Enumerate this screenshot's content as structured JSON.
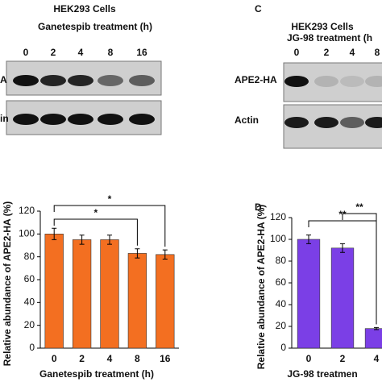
{
  "blots": {
    "left": {
      "title": "HEK293 Cells",
      "treatment": "Ganetespib treatment (h)",
      "lanes": [
        "0",
        "2",
        "4",
        "8",
        "16"
      ],
      "rows": [
        "A",
        "in"
      ]
    },
    "right": {
      "panel": "C",
      "title": "HEK293 Cells",
      "treatment": "JG-98 treatment (h",
      "lanes": [
        "0",
        "2",
        "4",
        "8"
      ],
      "rows": [
        "APE2-HA",
        "Actin"
      ]
    }
  },
  "chart_data": [
    {
      "type": "bar",
      "ylabel": "Relative abundance of APE2-HA (%)",
      "xlabel": "Ganetespib treatment (h)",
      "categories": [
        "0",
        "2",
        "4",
        "8",
        "16"
      ],
      "values": [
        100,
        95,
        95,
        83,
        82
      ],
      "errors": [
        5,
        4,
        4,
        4,
        4
      ],
      "color": "#f36f21",
      "ylim": [
        0,
        120
      ],
      "yticks": [
        0,
        20,
        40,
        60,
        80,
        100,
        120
      ],
      "annotations": [
        {
          "text": "*",
          "categories": [
            "0",
            "16"
          ]
        },
        {
          "text": "*",
          "categories": [
            "0",
            "8"
          ]
        }
      ]
    },
    {
      "type": "bar",
      "panel": "D",
      "ylabel": "Relative abundance of APE2-HA (%)",
      "xlabel": "JG-98 treatmen",
      "categories": [
        "0",
        "2",
        "4"
      ],
      "values": [
        100,
        92,
        18
      ],
      "errors": [
        4,
        4,
        1
      ],
      "color": "#7b3fe6",
      "ylim": [
        0,
        120
      ],
      "yticks": [
        0,
        20,
        40,
        60,
        80,
        100,
        120
      ],
      "annotations": [
        {
          "text": "**",
          "categories": [
            "0",
            "4"
          ]
        },
        {
          "text": "**",
          "categories": [
            "2",
            "4"
          ]
        }
      ]
    }
  ]
}
